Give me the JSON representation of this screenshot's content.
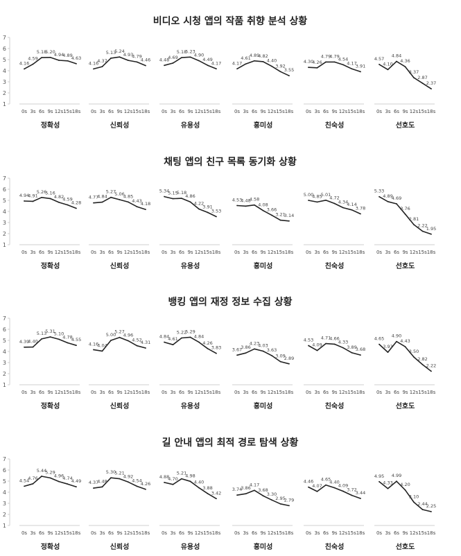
{
  "x_ticks": [
    "0s",
    "3s",
    "6s",
    "9s",
    "12s",
    "15s",
    "18s"
  ],
  "y_ticks": [
    "1",
    "2",
    "3",
    "4",
    "5",
    "6",
    "7"
  ],
  "chart_data": [
    {
      "type": "line",
      "title": "비디오 시청 앱의 작품 취향 분석 상황",
      "ylim": [
        1,
        7
      ],
      "x": [
        "0s",
        "3s",
        "6s",
        "9s",
        "12s",
        "15s",
        "18s"
      ],
      "panels": [
        {
          "label": "정확성",
          "values": [
            4.16,
            4.59,
            5.18,
            5.2,
            4.94,
            4.89,
            4.63
          ]
        },
        {
          "label": "신뢰성",
          "values": [
            4.16,
            4.37,
            5.13,
            5.24,
            4.93,
            4.79,
            4.46
          ]
        },
        {
          "label": "유용성",
          "values": [
            4.48,
            4.69,
            5.18,
            5.23,
            4.9,
            4.49,
            4.17
          ]
        },
        {
          "label": "흥미성",
          "values": [
            4.17,
            4.61,
            4.89,
            4.82,
            4.4,
            3.92,
            3.55
          ]
        },
        {
          "label": "친숙성",
          "values": [
            4.3,
            4.26,
            4.79,
            4.79,
            4.54,
            4.17,
            3.91
          ]
        },
        {
          "label": "선호도",
          "values": [
            4.57,
            4.1,
            4.84,
            4.36,
            3.37,
            2.87,
            2.37
          ]
        }
      ]
    },
    {
      "type": "line",
      "title": "채팅 앱의 친구 목록 동기화 상황",
      "ylim": [
        1,
        7
      ],
      "x": [
        "0s",
        "3s",
        "6s",
        "9s",
        "12s",
        "15s",
        "18s"
      ],
      "panels": [
        {
          "label": "정확성",
          "values": [
            4.94,
            4.91,
            5.26,
            5.16,
            4.82,
            4.59,
            4.28
          ]
        },
        {
          "label": "신뢰성",
          "values": [
            4.77,
            4.84,
            5.27,
            5.06,
            4.85,
            4.43,
            4.18
          ]
        },
        {
          "label": "유용성",
          "values": [
            5.34,
            5.15,
            5.18,
            4.86,
            4.22,
            3.91,
            3.53
          ]
        },
        {
          "label": "흥미성",
          "values": [
            4.53,
            4.48,
            4.58,
            4.08,
            3.66,
            3.21,
            3.14
          ]
        },
        {
          "label": "친숙성",
          "values": [
            5.0,
            4.85,
            5.01,
            4.72,
            4.34,
            4.14,
            3.78
          ]
        },
        {
          "label": "선호도",
          "values": [
            5.33,
            4.89,
            4.69,
            3.76,
            2.81,
            2.22,
            1.95
          ]
        }
      ]
    },
    {
      "type": "line",
      "title": "뱅킹 앱의 재정 정보 수집 상황",
      "ylim": [
        1,
        7
      ],
      "x": [
        "0s",
        "3s",
        "6s",
        "9s",
        "12s",
        "15s",
        "18s"
      ],
      "panels": [
        {
          "label": "정확성",
          "values": [
            4.39,
            4.4,
            5.13,
            5.31,
            5.1,
            4.78,
            4.55
          ]
        },
        {
          "label": "신뢰성",
          "values": [
            4.16,
            4.04,
            5.0,
            5.27,
            4.96,
            4.52,
            4.31
          ]
        },
        {
          "label": "유용성",
          "values": [
            4.84,
            4.61,
            5.22,
            5.29,
            4.84,
            4.26,
            3.83
          ]
        },
        {
          "label": "흥미성",
          "values": [
            3.67,
            3.86,
            4.23,
            4.03,
            3.63,
            3.09,
            2.89
          ]
        },
        {
          "label": "친숙성",
          "values": [
            4.53,
            4.09,
            4.71,
            4.66,
            4.33,
            3.89,
            3.68
          ]
        },
        {
          "label": "선호도",
          "values": [
            4.65,
            3.93,
            4.9,
            4.43,
            3.5,
            2.82,
            2.22
          ]
        }
      ]
    },
    {
      "type": "line",
      "title": "길 안내 앱의 최적 경로 탐색 상황",
      "ylim": [
        1,
        7
      ],
      "x": [
        "0s",
        "3s",
        "6s",
        "9s",
        "12s",
        "15s",
        "18s"
      ],
      "panels": [
        {
          "label": "정확성",
          "values": [
            4.54,
            4.76,
            5.44,
            5.29,
            4.96,
            4.74,
            4.49
          ]
        },
        {
          "label": "신뢰성",
          "values": [
            4.37,
            4.48,
            5.3,
            5.21,
            4.92,
            4.54,
            4.26
          ]
        },
        {
          "label": "유용성",
          "values": [
            4.88,
            4.7,
            5.21,
            4.98,
            4.4,
            3.88,
            3.42
          ]
        },
        {
          "label": "흥미성",
          "values": [
            3.74,
            3.86,
            4.17,
            3.68,
            3.3,
            2.95,
            2.79
          ]
        },
        {
          "label": "친숙성",
          "values": [
            4.46,
            4.07,
            4.65,
            4.4,
            4.09,
            3.72,
            3.44
          ]
        },
        {
          "label": "선호도",
          "values": [
            4.95,
            4.33,
            4.99,
            4.2,
            3.1,
            2.44,
            2.25
          ]
        }
      ]
    }
  ]
}
